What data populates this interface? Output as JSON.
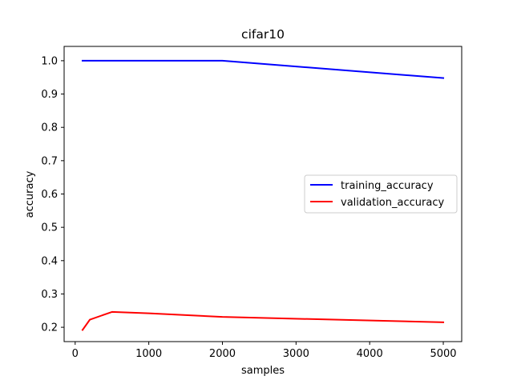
{
  "chart_data": {
    "type": "line",
    "title": "cifar10",
    "xlabel": "samples",
    "ylabel": "accuracy",
    "xlim": [
      -150,
      5250
    ],
    "ylim": [
      0.157,
      1.043
    ],
    "xticks": [
      0,
      1000,
      2000,
      3000,
      4000,
      5000
    ],
    "yticks": [
      0.2,
      0.3,
      0.4,
      0.5,
      0.6,
      0.7,
      0.8,
      0.9,
      1.0
    ],
    "ytick_labels": [
      "0.2",
      "0.3",
      "0.4",
      "0.5",
      "0.6",
      "0.7",
      "0.8",
      "0.9",
      "1.0"
    ],
    "legend_position": "center-right",
    "series": [
      {
        "name": "training_accuracy",
        "color": "#0000ff",
        "x": [
          100,
          200,
          500,
          1000,
          2000,
          5000
        ],
        "y": [
          1.0,
          1.0,
          1.0,
          1.0,
          1.0,
          0.948
        ]
      },
      {
        "name": "validation_accuracy",
        "color": "#ff0000",
        "x": [
          100,
          200,
          500,
          1000,
          2000,
          5000
        ],
        "y": [
          0.192,
          0.223,
          0.246,
          0.242,
          0.231,
          0.215
        ]
      }
    ]
  }
}
